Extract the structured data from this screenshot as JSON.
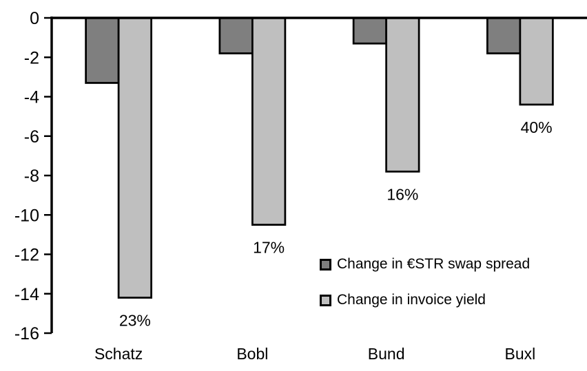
{
  "chart_data": {
    "type": "bar",
    "orientation": "vertical",
    "title": "",
    "xlabel": "",
    "ylabel": "",
    "categories": [
      "Schatz",
      "Bobl",
      "Bund",
      "Buxl"
    ],
    "series": [
      {
        "name": "Change in €STR swap spread",
        "color": "#7f7f7f",
        "values": [
          -3.3,
          -1.8,
          -1.3,
          -1.8
        ]
      },
      {
        "name": "Change in invoice yield",
        "color": "#bfbfbf",
        "values": [
          -14.2,
          -10.5,
          -7.8,
          -4.4
        ]
      }
    ],
    "bar_labels": {
      "attached_to_series": "Change in invoice yield",
      "values": [
        "23%",
        "17%",
        "16%",
        "40%"
      ]
    },
    "y_axis": {
      "min": -16,
      "max": 0,
      "tick_step": 2,
      "tick_labels": [
        "0",
        "-2",
        "-4",
        "-6",
        "-8",
        "-10",
        "-12",
        "-14",
        "-16"
      ]
    },
    "grid": false,
    "legend_position": "inside-right",
    "bar_outline_color": "#000000",
    "axis_color": "#000000",
    "background": "#ffffff"
  }
}
